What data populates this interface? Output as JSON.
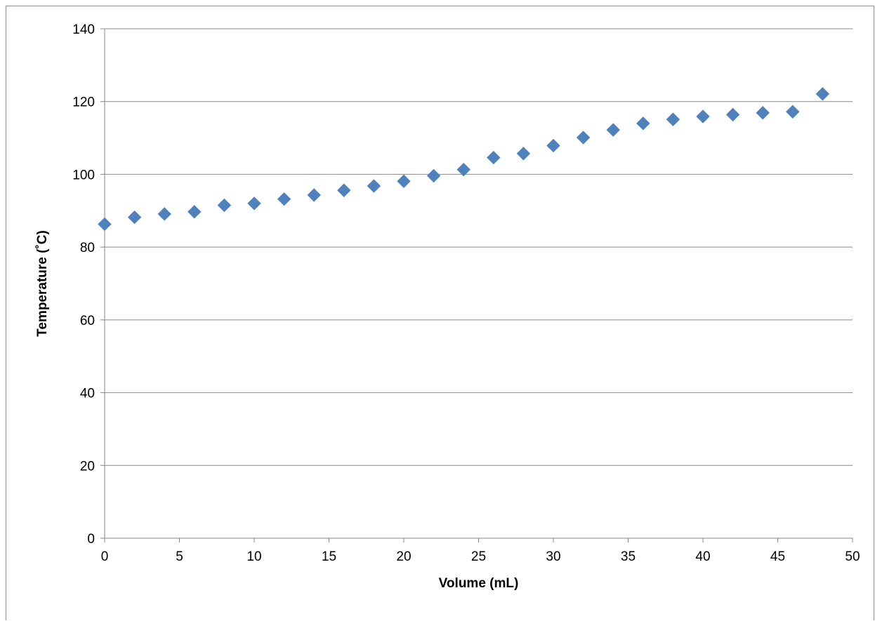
{
  "chart_data": {
    "type": "scatter",
    "title": "",
    "xlabel": "Volume (mL)",
    "ylabel": "Temperature (˚C)",
    "xlim": [
      0,
      50
    ],
    "ylim": [
      0,
      140
    ],
    "x_ticks": [
      0,
      5,
      10,
      15,
      20,
      25,
      30,
      35,
      40,
      45,
      50
    ],
    "y_ticks": [
      0,
      20,
      40,
      60,
      80,
      100,
      120,
      140
    ],
    "grid": "horizontal",
    "legend": "none",
    "marker": "diamond",
    "marker_color": "#4F81BD",
    "gridline_color": "#878787",
    "series": [
      {
        "x": [
          0,
          2,
          4,
          6,
          8,
          10,
          12,
          14,
          16,
          18,
          20,
          22,
          24,
          26,
          28,
          30,
          32,
          34,
          36,
          38,
          40,
          42,
          44,
          46,
          48
        ],
        "y": [
          86.3,
          88.2,
          89.1,
          89.7,
          91.5,
          92.0,
          93.2,
          94.3,
          95.6,
          96.8,
          98.1,
          99.6,
          101.3,
          104.6,
          105.7,
          107.9,
          110.1,
          112.2,
          114.0,
          115.1,
          115.9,
          116.4,
          116.9,
          117.2,
          122.1
        ]
      }
    ]
  }
}
